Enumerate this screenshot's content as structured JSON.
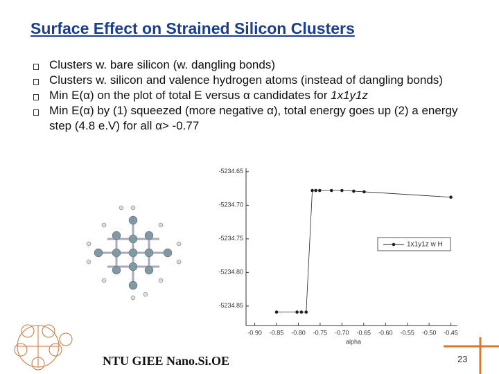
{
  "header": {
    "title": "Surface Effect on Strained Silicon Clusters"
  },
  "bullets": [
    {
      "text": "Clusters w. bare silicon (w. dangling bonds)"
    },
    {
      "text": "Clusters w. silicon and valence hydrogen atoms (instead of dangling bonds)"
    },
    {
      "text": "Min E(α) on the plot of total E versus α candidates for ",
      "italic": "1x1y1z"
    },
    {
      "text": "Min E(α) by (1) squeezed (more negative α), total energy goes up (2) a energy step (4.8 e.V) for all α> -0.77"
    }
  ],
  "chart_data": {
    "type": "line",
    "xlabel": "alpha",
    "x": [
      -0.85,
      -0.803,
      -0.793,
      -0.782,
      -0.768,
      -0.76,
      -0.751,
      -0.724,
      -0.7,
      -0.673,
      -0.649,
      -0.45
    ],
    "series": [
      {
        "name": "1x1y1z w H",
        "color": "#222222",
        "values": [
          -5234.859,
          -5234.859,
          -5234.859,
          -5234.859,
          -5234.678,
          -5234.678,
          -5234.678,
          -5234.678,
          -5234.678,
          -5234.679,
          -5234.68,
          -5234.688
        ]
      }
    ],
    "xlim": [
      -0.92,
      -0.435
    ],
    "ylim": [
      -5234.879,
      -5234.645
    ],
    "xticks": [
      {
        "value": -0.9,
        "label": "-0.90"
      },
      -0.85,
      {
        "value": -0.8,
        "label": "-0.80"
      },
      -0.75,
      {
        "value": -0.7,
        "label": "-0.70"
      },
      -0.65,
      {
        "value": -0.6,
        "label": "-0.60"
      },
      -0.55,
      {
        "value": -0.5,
        "label": "-0.50"
      },
      -0.45
    ],
    "yticks": [
      -5234.65,
      {
        "value": -5234.7,
        "label": "-5234.70"
      },
      -5234.75,
      {
        "value": -5234.8,
        "label": "-5234.80"
      },
      -5234.85
    ],
    "legend": "right"
  },
  "footer": {
    "text": "NTU GIEE Nano.Si.OE",
    "page": 23
  }
}
